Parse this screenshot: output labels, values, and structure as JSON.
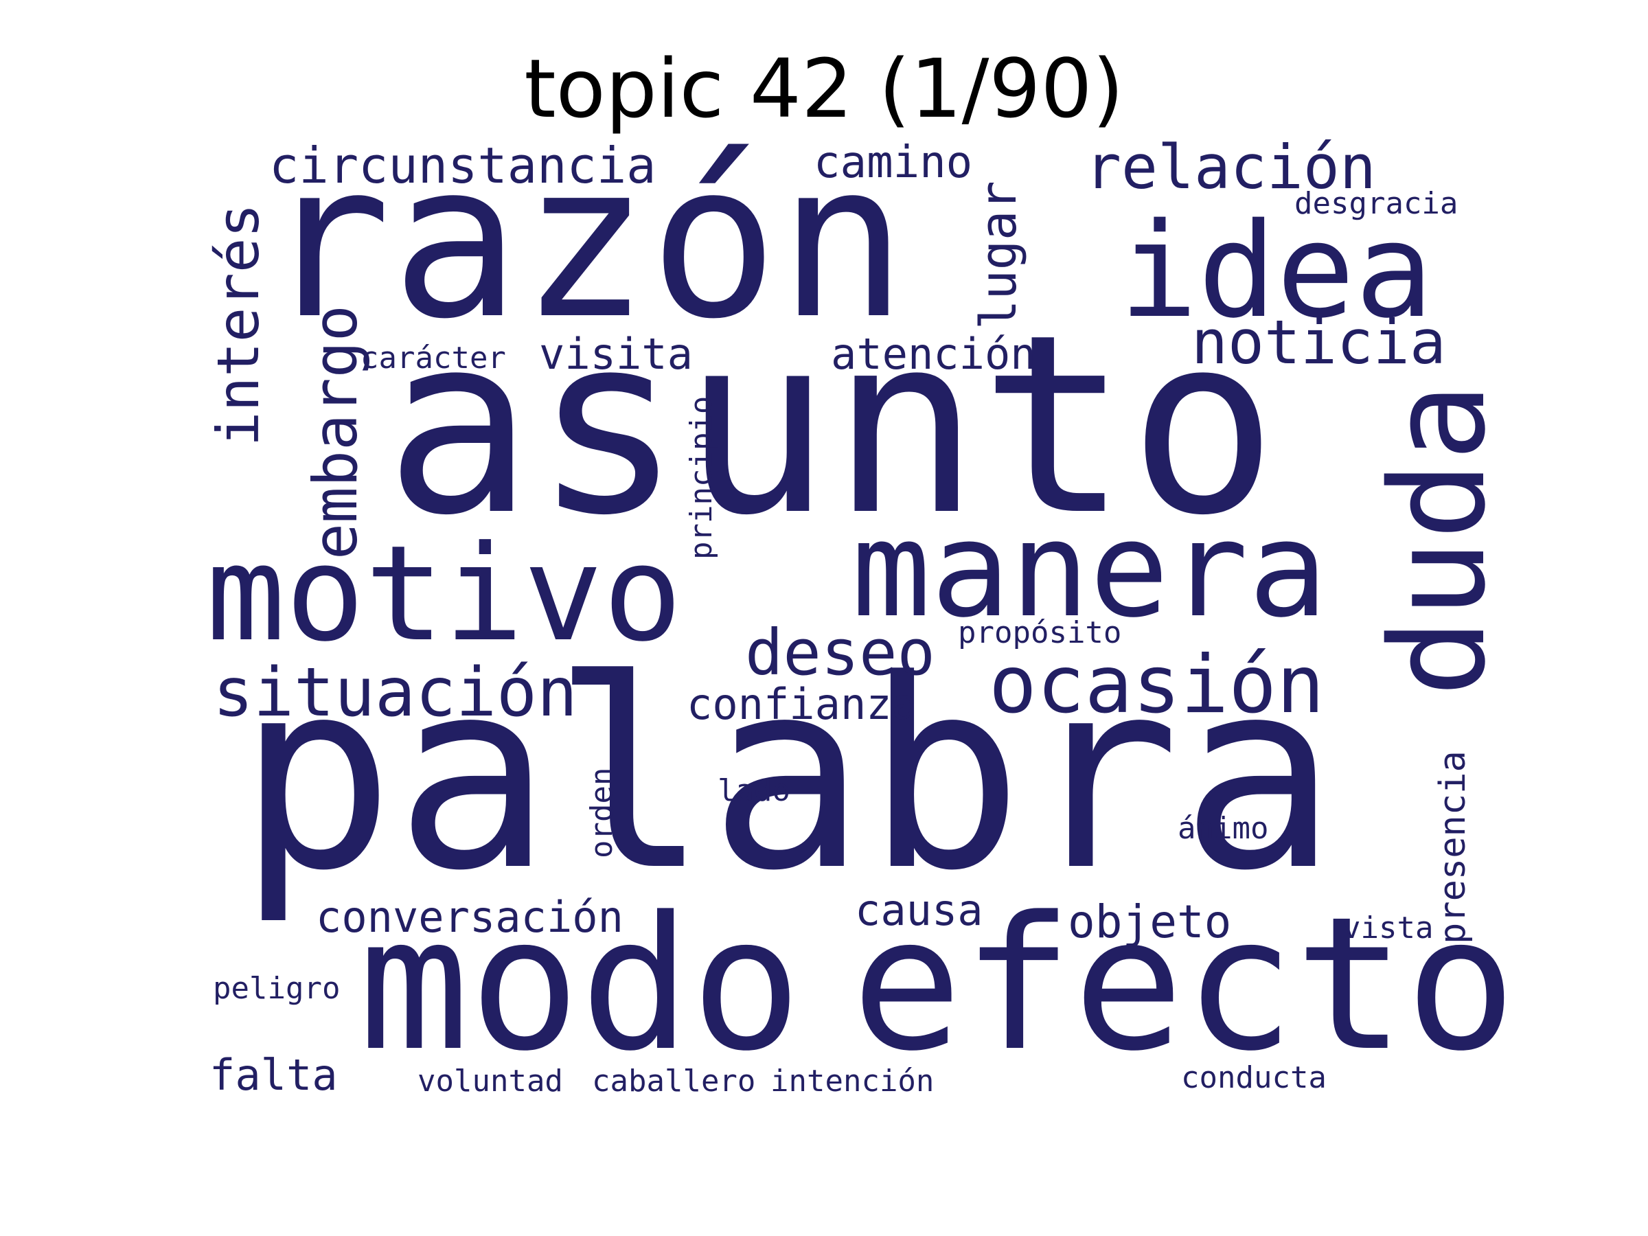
{
  "title": "topic 42 (1/90)",
  "word_color": "#221f63",
  "words": {
    "palabra": "palabra",
    "asunto": "asunto",
    "razon": "razón",
    "modo": "modo",
    "efecto": "efecto",
    "motivo": "motivo",
    "manera": "manera",
    "idea": "idea",
    "duda": "duda",
    "ocasion": "ocasión",
    "situacion": "situación",
    "deseo": "deseo",
    "relacion": "relación",
    "noticia": "noticia",
    "embargo": "embargo",
    "interes": "interés",
    "circunstancia": "circunstancia",
    "camino": "camino",
    "lugar": "lugar",
    "atencion": "atención",
    "visita": "visita",
    "confianza": "confianza",
    "conversacion": "conversación",
    "causa": "causa",
    "objeto": "objeto",
    "falta": "falta",
    "presencia": "presencia",
    "caracter": "carácter",
    "principio": "principio",
    "proposito": "propósito",
    "desgracia": "desgracia",
    "lado": "lado",
    "orden": "orden",
    "animo": "ánimo",
    "vista": "vista",
    "peligro": "peligro",
    "voluntad": "voluntad",
    "caballero": "caballero",
    "intencion": "intención",
    "conducta": "conducta"
  }
}
